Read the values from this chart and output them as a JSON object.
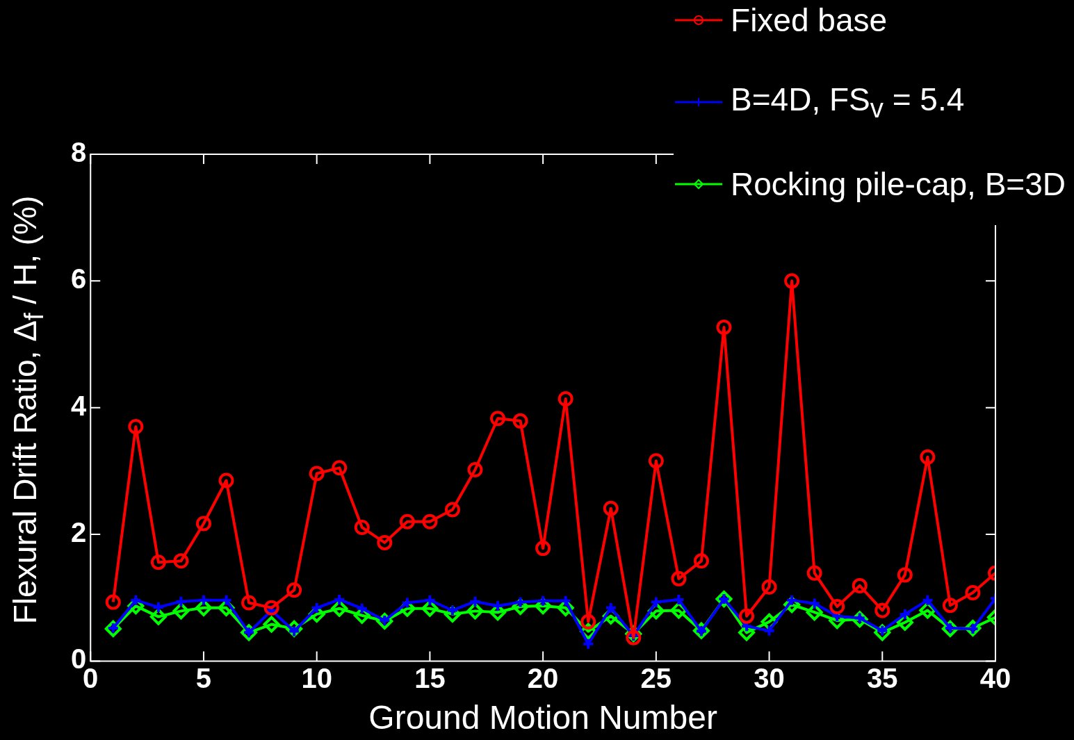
{
  "chart_data": {
    "type": "line",
    "xlabel": "Ground Motion Number",
    "ylabel": "Flexural Drift Ratio, Δ$_{f}$ / H, (%)",
    "x": [
      1,
      2,
      3,
      4,
      5,
      6,
      7,
      8,
      9,
      10,
      11,
      12,
      13,
      14,
      15,
      16,
      17,
      18,
      19,
      20,
      21,
      22,
      23,
      24,
      25,
      26,
      27,
      28,
      29,
      30,
      31,
      32,
      33,
      34,
      35,
      36,
      37,
      38,
      39,
      40
    ],
    "series": [
      {
        "name": "Fixed base",
        "color": "#ff0000",
        "marker": "circle",
        "values": [
          0.93,
          3.7,
          1.56,
          1.58,
          2.17,
          2.85,
          0.92,
          0.84,
          1.12,
          2.96,
          3.05,
          2.11,
          1.87,
          2.2,
          2.2,
          2.39,
          3.02,
          3.83,
          3.79,
          1.78,
          4.14,
          0.62,
          2.41,
          0.37,
          3.16,
          1.3,
          1.58,
          5.27,
          0.71,
          1.17,
          6.0,
          1.39,
          0.86,
          1.19,
          0.8,
          1.36,
          3.22,
          0.88,
          1.08,
          1.39
        ]
      },
      {
        "name": "B=4D, FS$_{v}$ = 5.4",
        "color": "#0000ff",
        "marker": "cross",
        "values": [
          0.52,
          0.96,
          0.85,
          0.94,
          0.96,
          0.96,
          0.45,
          0.8,
          0.47,
          0.84,
          0.97,
          0.83,
          0.64,
          0.92,
          0.96,
          0.8,
          0.94,
          0.87,
          0.93,
          0.95,
          0.95,
          0.27,
          0.84,
          0.4,
          0.93,
          0.97,
          0.47,
          0.98,
          0.55,
          0.48,
          0.96,
          0.91,
          0.71,
          0.68,
          0.48,
          0.74,
          0.96,
          0.52,
          0.51,
          0.99
        ]
      },
      {
        "name": "Rocking pile-cap, B=3D",
        "color": "#00ff00",
        "marker": "diamond",
        "values": [
          0.51,
          0.87,
          0.7,
          0.79,
          0.84,
          0.84,
          0.45,
          0.58,
          0.51,
          0.74,
          0.83,
          0.72,
          0.63,
          0.83,
          0.83,
          0.74,
          0.79,
          0.77,
          0.86,
          0.87,
          0.84,
          0.47,
          0.71,
          0.43,
          0.79,
          0.8,
          0.48,
          0.98,
          0.45,
          0.62,
          0.89,
          0.77,
          0.64,
          0.66,
          0.45,
          0.61,
          0.8,
          0.51,
          0.52,
          0.69
        ]
      }
    ],
    "xlim": [
      0,
      40
    ],
    "xticks": [
      0,
      5,
      10,
      15,
      20,
      25,
      30,
      35,
      40
    ],
    "ylim": [
      0,
      8
    ],
    "yticks": [
      0,
      2,
      4,
      6,
      8
    ],
    "grid": false,
    "legend": "top right",
    "line_style": "solid"
  }
}
